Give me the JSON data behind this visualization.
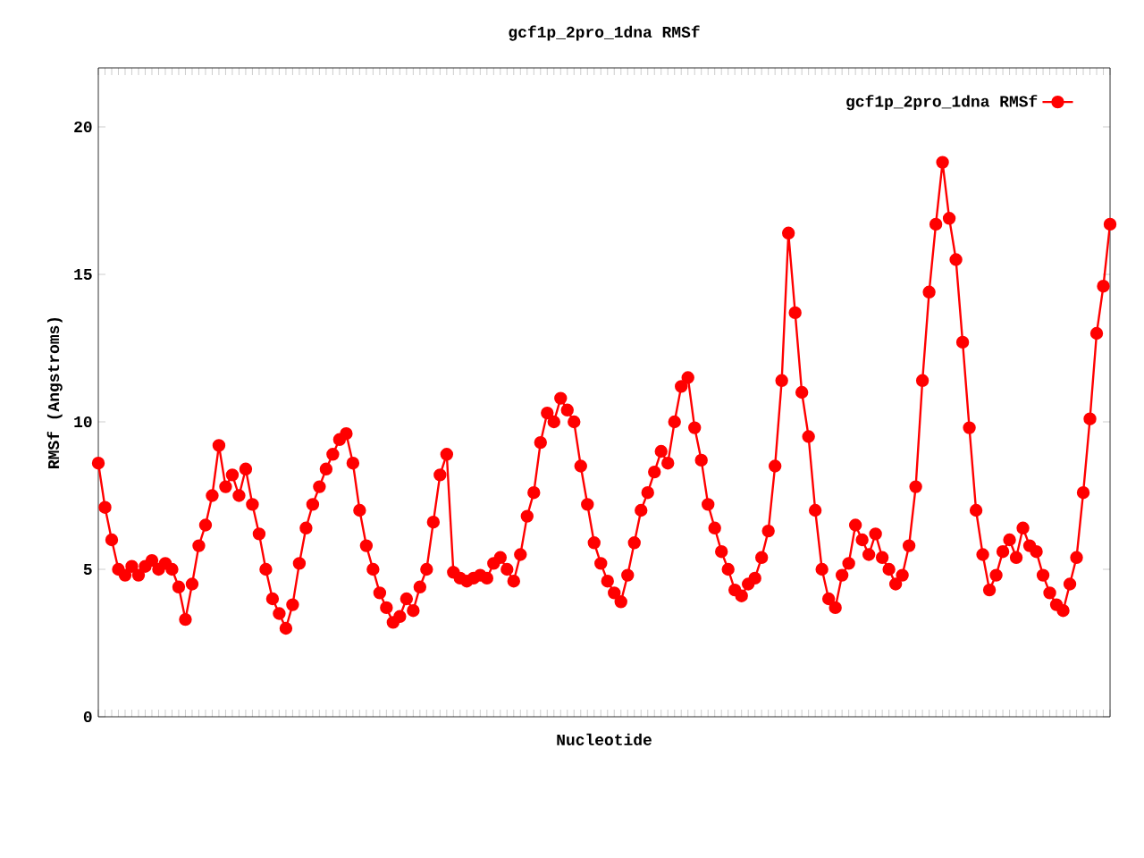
{
  "chart_data": {
    "type": "line",
    "title": "gcf1p_2pro_1dna RMSf",
    "xlabel": "Nucleotide",
    "ylabel": "RMSf (Angstroms)",
    "categories": [
      null,
      null,
      null,
      null,
      null,
      null,
      null,
      null,
      null,
      null,
      null,
      null,
      null,
      null,
      null,
      null,
      null,
      null,
      null,
      null,
      null,
      null,
      null,
      null,
      null,
      null,
      null,
      null,
      null,
      null,
      null,
      null,
      null,
      null,
      null,
      null,
      null,
      null,
      null,
      null,
      null,
      null,
      null,
      null,
      null,
      null,
      null,
      null,
      null,
      null,
      null,
      null,
      null,
      null,
      null,
      null,
      null,
      null,
      null,
      null,
      null,
      null,
      null,
      null,
      null,
      null,
      null,
      null,
      null,
      null,
      null,
      null,
      null,
      null,
      null,
      null,
      null,
      null,
      null,
      null,
      null,
      null,
      null,
      null,
      null,
      null,
      null,
      null,
      null,
      null,
      null,
      null,
      null,
      null,
      null,
      null,
      null,
      null,
      null,
      null,
      null,
      null,
      null,
      null,
      null,
      null,
      null,
      null,
      null,
      null,
      null,
      null,
      null,
      null,
      null,
      null,
      null,
      null,
      null,
      null,
      null,
      null,
      null,
      null,
      null,
      null,
      null,
      null,
      null,
      null,
      null,
      null,
      null,
      null,
      null,
      null,
      null,
      null,
      null,
      null,
      null,
      null,
      null,
      null,
      null,
      null,
      null,
      null,
      null,
      null,
      null,
      null
    ],
    "series": [
      {
        "name": "gcf1p_2pro_1dna RMSf",
        "color": "#ff0000",
        "values": [
          8.6,
          7.1,
          6.0,
          5.0,
          4.8,
          5.1,
          4.8,
          5.1,
          5.3,
          5.0,
          5.2,
          5.0,
          4.4,
          3.3,
          4.5,
          5.8,
          6.5,
          7.5,
          9.2,
          7.8,
          8.2,
          7.5,
          8.4,
          7.2,
          6.2,
          5.0,
          4.0,
          3.5,
          3.0,
          3.8,
          5.2,
          6.4,
          7.2,
          7.8,
          8.4,
          8.9,
          9.4,
          9.6,
          8.6,
          7.0,
          5.8,
          5.0,
          4.2,
          3.7,
          3.2,
          3.4,
          4.0,
          3.6,
          4.4,
          5.0,
          6.6,
          8.2,
          8.9,
          4.9,
          4.7,
          4.6,
          4.7,
          4.8,
          4.7,
          5.2,
          5.4,
          5.0,
          4.6,
          5.5,
          6.8,
          7.6,
          9.3,
          10.3,
          10.0,
          10.8,
          10.4,
          10.0,
          8.5,
          7.2,
          5.9,
          5.2,
          4.6,
          4.2,
          3.9,
          4.8,
          5.9,
          7.0,
          7.6,
          8.3,
          9.0,
          8.6,
          10.0,
          11.2,
          11.5,
          9.8,
          8.7,
          7.2,
          6.4,
          5.6,
          5.0,
          4.3,
          4.1,
          4.5,
          4.7,
          5.4,
          6.3,
          8.5,
          11.4,
          16.4,
          13.7,
          11.0,
          9.5,
          7.0,
          5.0,
          4.0,
          3.7,
          4.8,
          5.2,
          6.5,
          6.0,
          5.5,
          6.2,
          5.4,
          5.0,
          4.5,
          4.8,
          5.8,
          7.8,
          11.4,
          14.4,
          16.7,
          18.8,
          16.9,
          15.5,
          12.7,
          9.8,
          7.0,
          5.5,
          4.3,
          4.8,
          5.6,
          6.0,
          5.4,
          6.4,
          5.8,
          5.6,
          4.8,
          4.2,
          3.8,
          3.6,
          4.5,
          5.4,
          7.6,
          10.1,
          13.0,
          14.6,
          16.7
        ]
      }
    ],
    "ylim": [
      0,
      22
    ],
    "yticks": [
      0,
      5,
      10,
      15,
      20
    ],
    "tick_labels": "y",
    "legend": "top right",
    "marker": "circle",
    "line_style": "solid",
    "grid": false
  }
}
